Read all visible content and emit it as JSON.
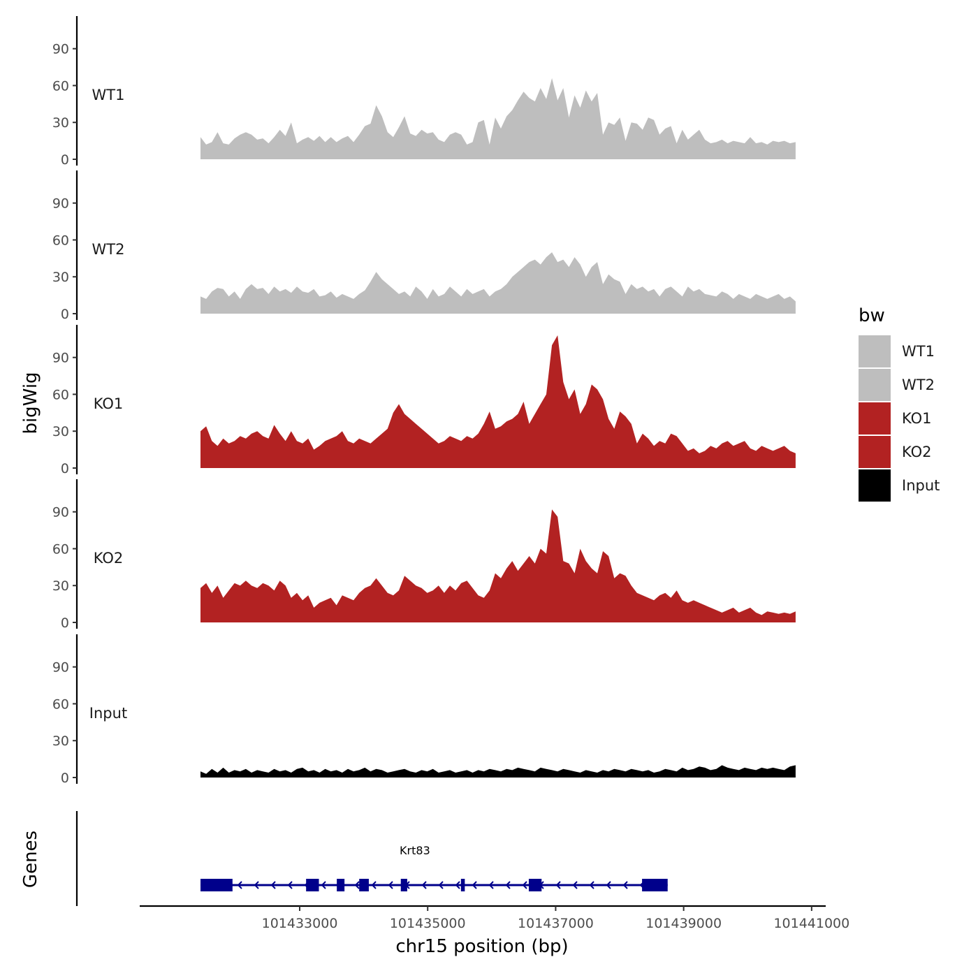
{
  "chart_data": {
    "type": "area",
    "title": "",
    "ylabel": "bigWig",
    "xlabel": "chr15 position (bp)",
    "x_range": [
      101431450,
      101440750
    ],
    "xlim": [
      101430500,
      101441220
    ],
    "x_ticks": [
      101433000,
      101435000,
      101437000,
      101439000,
      101441000
    ],
    "x_tick_labels": [
      "101433000",
      "101435000",
      "101437000",
      "101439000",
      "101441000"
    ],
    "ylim": [
      0,
      112
    ],
    "y_ticks": [
      0,
      30,
      60,
      90
    ],
    "y_tick_labels": [
      "0",
      "30",
      "60",
      "90"
    ],
    "legend": {
      "title": "bw",
      "position": "right",
      "entries": [
        {
          "label": "WT1",
          "color": "#bebebe"
        },
        {
          "label": "WT2",
          "color": "#bebebe"
        },
        {
          "label": "KO1",
          "color": "#b22222"
        },
        {
          "label": "KO2",
          "color": "#b22222"
        },
        {
          "label": "Input",
          "color": "#000000"
        }
      ]
    },
    "series": [
      {
        "name": "WT1",
        "color": "#bebebe",
        "values": [
          18,
          12,
          14,
          22,
          13,
          12,
          17,
          20,
          22,
          20,
          16,
          17,
          13,
          18,
          24,
          19,
          30,
          13,
          16,
          18,
          15,
          19,
          14,
          18,
          14,
          17,
          19,
          14,
          20,
          27,
          29,
          44,
          35,
          22,
          18,
          26,
          35,
          21,
          19,
          24,
          21,
          22,
          16,
          14,
          20,
          22,
          20,
          12,
          14,
          30,
          32,
          12,
          34,
          25,
          35,
          40,
          48,
          55,
          50,
          47,
          58,
          49,
          66,
          48,
          58,
          34,
          52,
          42,
          56,
          47,
          54,
          20,
          30,
          28,
          34,
          15,
          30,
          29,
          24,
          34,
          32,
          20,
          25,
          27,
          13,
          24,
          16,
          20,
          24,
          16,
          13,
          14,
          16,
          13,
          15,
          14,
          13,
          18,
          13,
          14,
          12,
          15,
          14,
          15,
          13,
          14
        ]
      },
      {
        "name": "WT2",
        "color": "#bebebe",
        "values": [
          14,
          12,
          18,
          21,
          20,
          14,
          18,
          12,
          20,
          24,
          20,
          21,
          16,
          22,
          18,
          20,
          17,
          22,
          18,
          17,
          20,
          14,
          15,
          18,
          13,
          16,
          14,
          12,
          16,
          19,
          26,
          34,
          28,
          24,
          20,
          16,
          18,
          14,
          22,
          18,
          12,
          20,
          14,
          16,
          22,
          18,
          14,
          20,
          16,
          18,
          20,
          14,
          18,
          20,
          24,
          30,
          34,
          38,
          42,
          44,
          40,
          46,
          50,
          42,
          44,
          38,
          46,
          40,
          30,
          38,
          42,
          24,
          32,
          28,
          26,
          16,
          24,
          20,
          22,
          18,
          20,
          14,
          20,
          22,
          18,
          14,
          22,
          18,
          20,
          16,
          15,
          14,
          18,
          16,
          12,
          16,
          14,
          12,
          16,
          14,
          12,
          14,
          16,
          12,
          14,
          10
        ]
      },
      {
        "name": "KO1",
        "color": "#b22222",
        "values": [
          30,
          34,
          22,
          18,
          24,
          20,
          22,
          26,
          24,
          28,
          30,
          26,
          24,
          35,
          28,
          22,
          30,
          22,
          20,
          24,
          15,
          18,
          22,
          24,
          26,
          30,
          22,
          20,
          24,
          22,
          20,
          24,
          28,
          32,
          45,
          52,
          44,
          40,
          36,
          32,
          28,
          24,
          20,
          22,
          26,
          24,
          22,
          26,
          24,
          28,
          36,
          46,
          32,
          34,
          38,
          40,
          44,
          54,
          36,
          44,
          52,
          60,
          100,
          108,
          70,
          56,
          64,
          44,
          52,
          68,
          64,
          56,
          40,
          32,
          46,
          42,
          36,
          20,
          28,
          24,
          18,
          22,
          20,
          28,
          26,
          20,
          14,
          16,
          12,
          14,
          18,
          16,
          20,
          22,
          18,
          20,
          22,
          16,
          14,
          18,
          16,
          14,
          16,
          18,
          14,
          12
        ]
      },
      {
        "name": "KO2",
        "color": "#b22222",
        "values": [
          28,
          32,
          24,
          30,
          20,
          26,
          32,
          30,
          34,
          30,
          28,
          32,
          30,
          26,
          34,
          30,
          20,
          24,
          18,
          22,
          12,
          16,
          18,
          20,
          14,
          22,
          20,
          18,
          24,
          28,
          30,
          36,
          30,
          24,
          22,
          26,
          38,
          34,
          30,
          28,
          24,
          26,
          30,
          24,
          30,
          26,
          32,
          34,
          28,
          22,
          20,
          26,
          40,
          36,
          44,
          50,
          42,
          48,
          54,
          48,
          60,
          56,
          92,
          86,
          50,
          48,
          40,
          60,
          50,
          44,
          40,
          58,
          54,
          36,
          40,
          38,
          30,
          24,
          22,
          20,
          18,
          22,
          24,
          20,
          26,
          18,
          16,
          18,
          16,
          14,
          12,
          10,
          8,
          10,
          12,
          8,
          10,
          12,
          8,
          6,
          9,
          8,
          7,
          8,
          7,
          9
        ]
      },
      {
        "name": "Input",
        "color": "#000000",
        "values": [
          5,
          3,
          7,
          4,
          8,
          4,
          6,
          5,
          7,
          4,
          6,
          5,
          4,
          7,
          5,
          6,
          4,
          7,
          8,
          5,
          6,
          4,
          7,
          5,
          6,
          4,
          7,
          5,
          6,
          8,
          5,
          7,
          6,
          4,
          5,
          6,
          7,
          5,
          4,
          6,
          5,
          7,
          4,
          5,
          6,
          4,
          5,
          6,
          4,
          6,
          5,
          7,
          6,
          5,
          7,
          6,
          8,
          7,
          6,
          5,
          8,
          7,
          6,
          5,
          7,
          6,
          5,
          4,
          6,
          5,
          4,
          6,
          5,
          7,
          6,
          5,
          7,
          6,
          5,
          6,
          4,
          5,
          7,
          6,
          5,
          8,
          6,
          7,
          9,
          8,
          6,
          7,
          10,
          8,
          7,
          6,
          8,
          7,
          6,
          8,
          7,
          8,
          7,
          6,
          9,
          10
        ]
      }
    ],
    "genes_panel": {
      "label": "Genes",
      "gene_name": "Krt83",
      "strand": "-",
      "color": "#00008b",
      "start": 101431450,
      "end": 101438750,
      "exons": [
        [
          101431450,
          101431950
        ],
        [
          101433100,
          101433300
        ],
        [
          101433580,
          101433700
        ],
        [
          101433930,
          101434080
        ],
        [
          101434580,
          101434680
        ],
        [
          101435520,
          101435580
        ],
        [
          101436580,
          101436780
        ],
        [
          101438350,
          101438750
        ]
      ]
    }
  }
}
